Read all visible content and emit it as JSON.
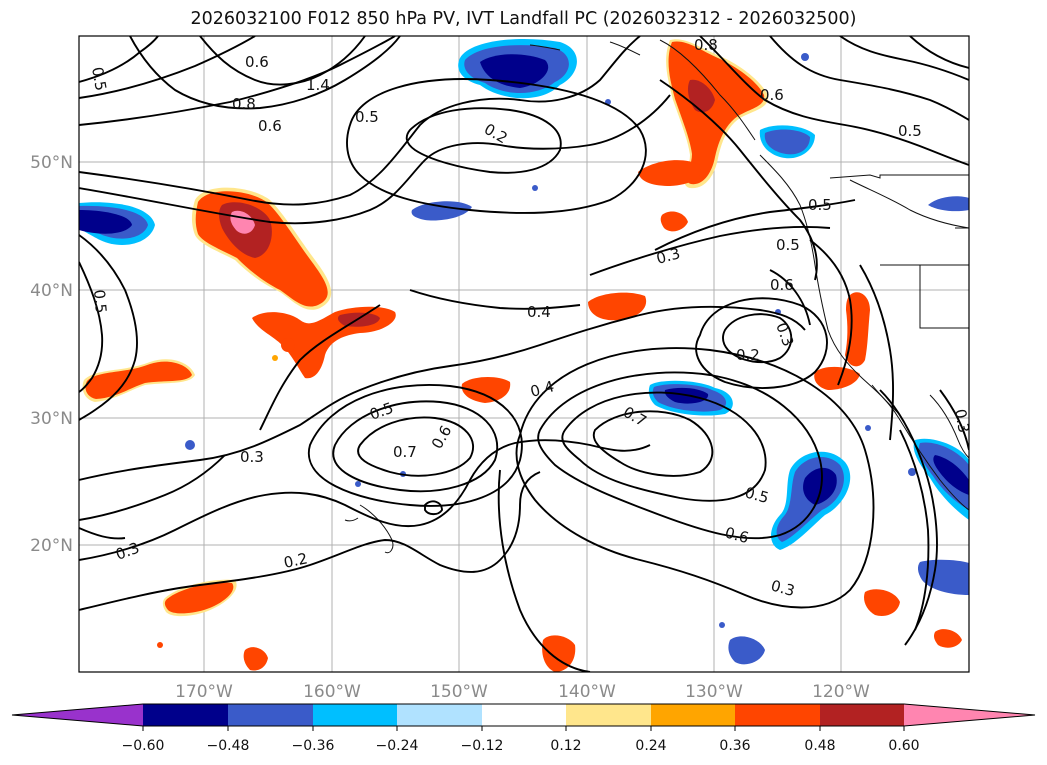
{
  "title": "2026032100 F012 850 hPa PV, IVT Landfall PC (2026032312 - 2026032500)",
  "lat_ticks": [
    "50°N",
    "40°N",
    "30°N",
    "20°N"
  ],
  "lon_ticks": [
    "170°W",
    "160°W",
    "150°W",
    "140°W",
    "130°W",
    "120°W"
  ],
  "contour_labels": [
    "0.5",
    "0.8",
    "0.6",
    "1.4",
    "0.6",
    "0.5",
    "0.2",
    "0.8",
    "0.6",
    "0.5",
    "0.5",
    "0.5",
    "0.5",
    "0.3",
    "0.4",
    "0.3",
    "0.6",
    "0.2",
    "0.3",
    "0.4",
    "0.5",
    "0.7",
    "0.6",
    "0.7",
    "0.3",
    "0.5",
    "0.6",
    "0.3",
    "0.2",
    "0.3"
  ],
  "colorbar": {
    "colors": [
      "#9932CC",
      "#00008B",
      "#3A5BC9",
      "#00BFFF",
      "#B0E2FF",
      "#FFFFFF",
      "#FFE68C",
      "#FFA500",
      "#FF4500",
      "#B22222",
      "#FF85B0"
    ],
    "tick_labels": [
      "−0.60",
      "−0.48",
      "−0.36",
      "−0.24",
      "−0.12",
      "0.12",
      "0.24",
      "0.36",
      "0.48",
      "0.60"
    ]
  }
}
